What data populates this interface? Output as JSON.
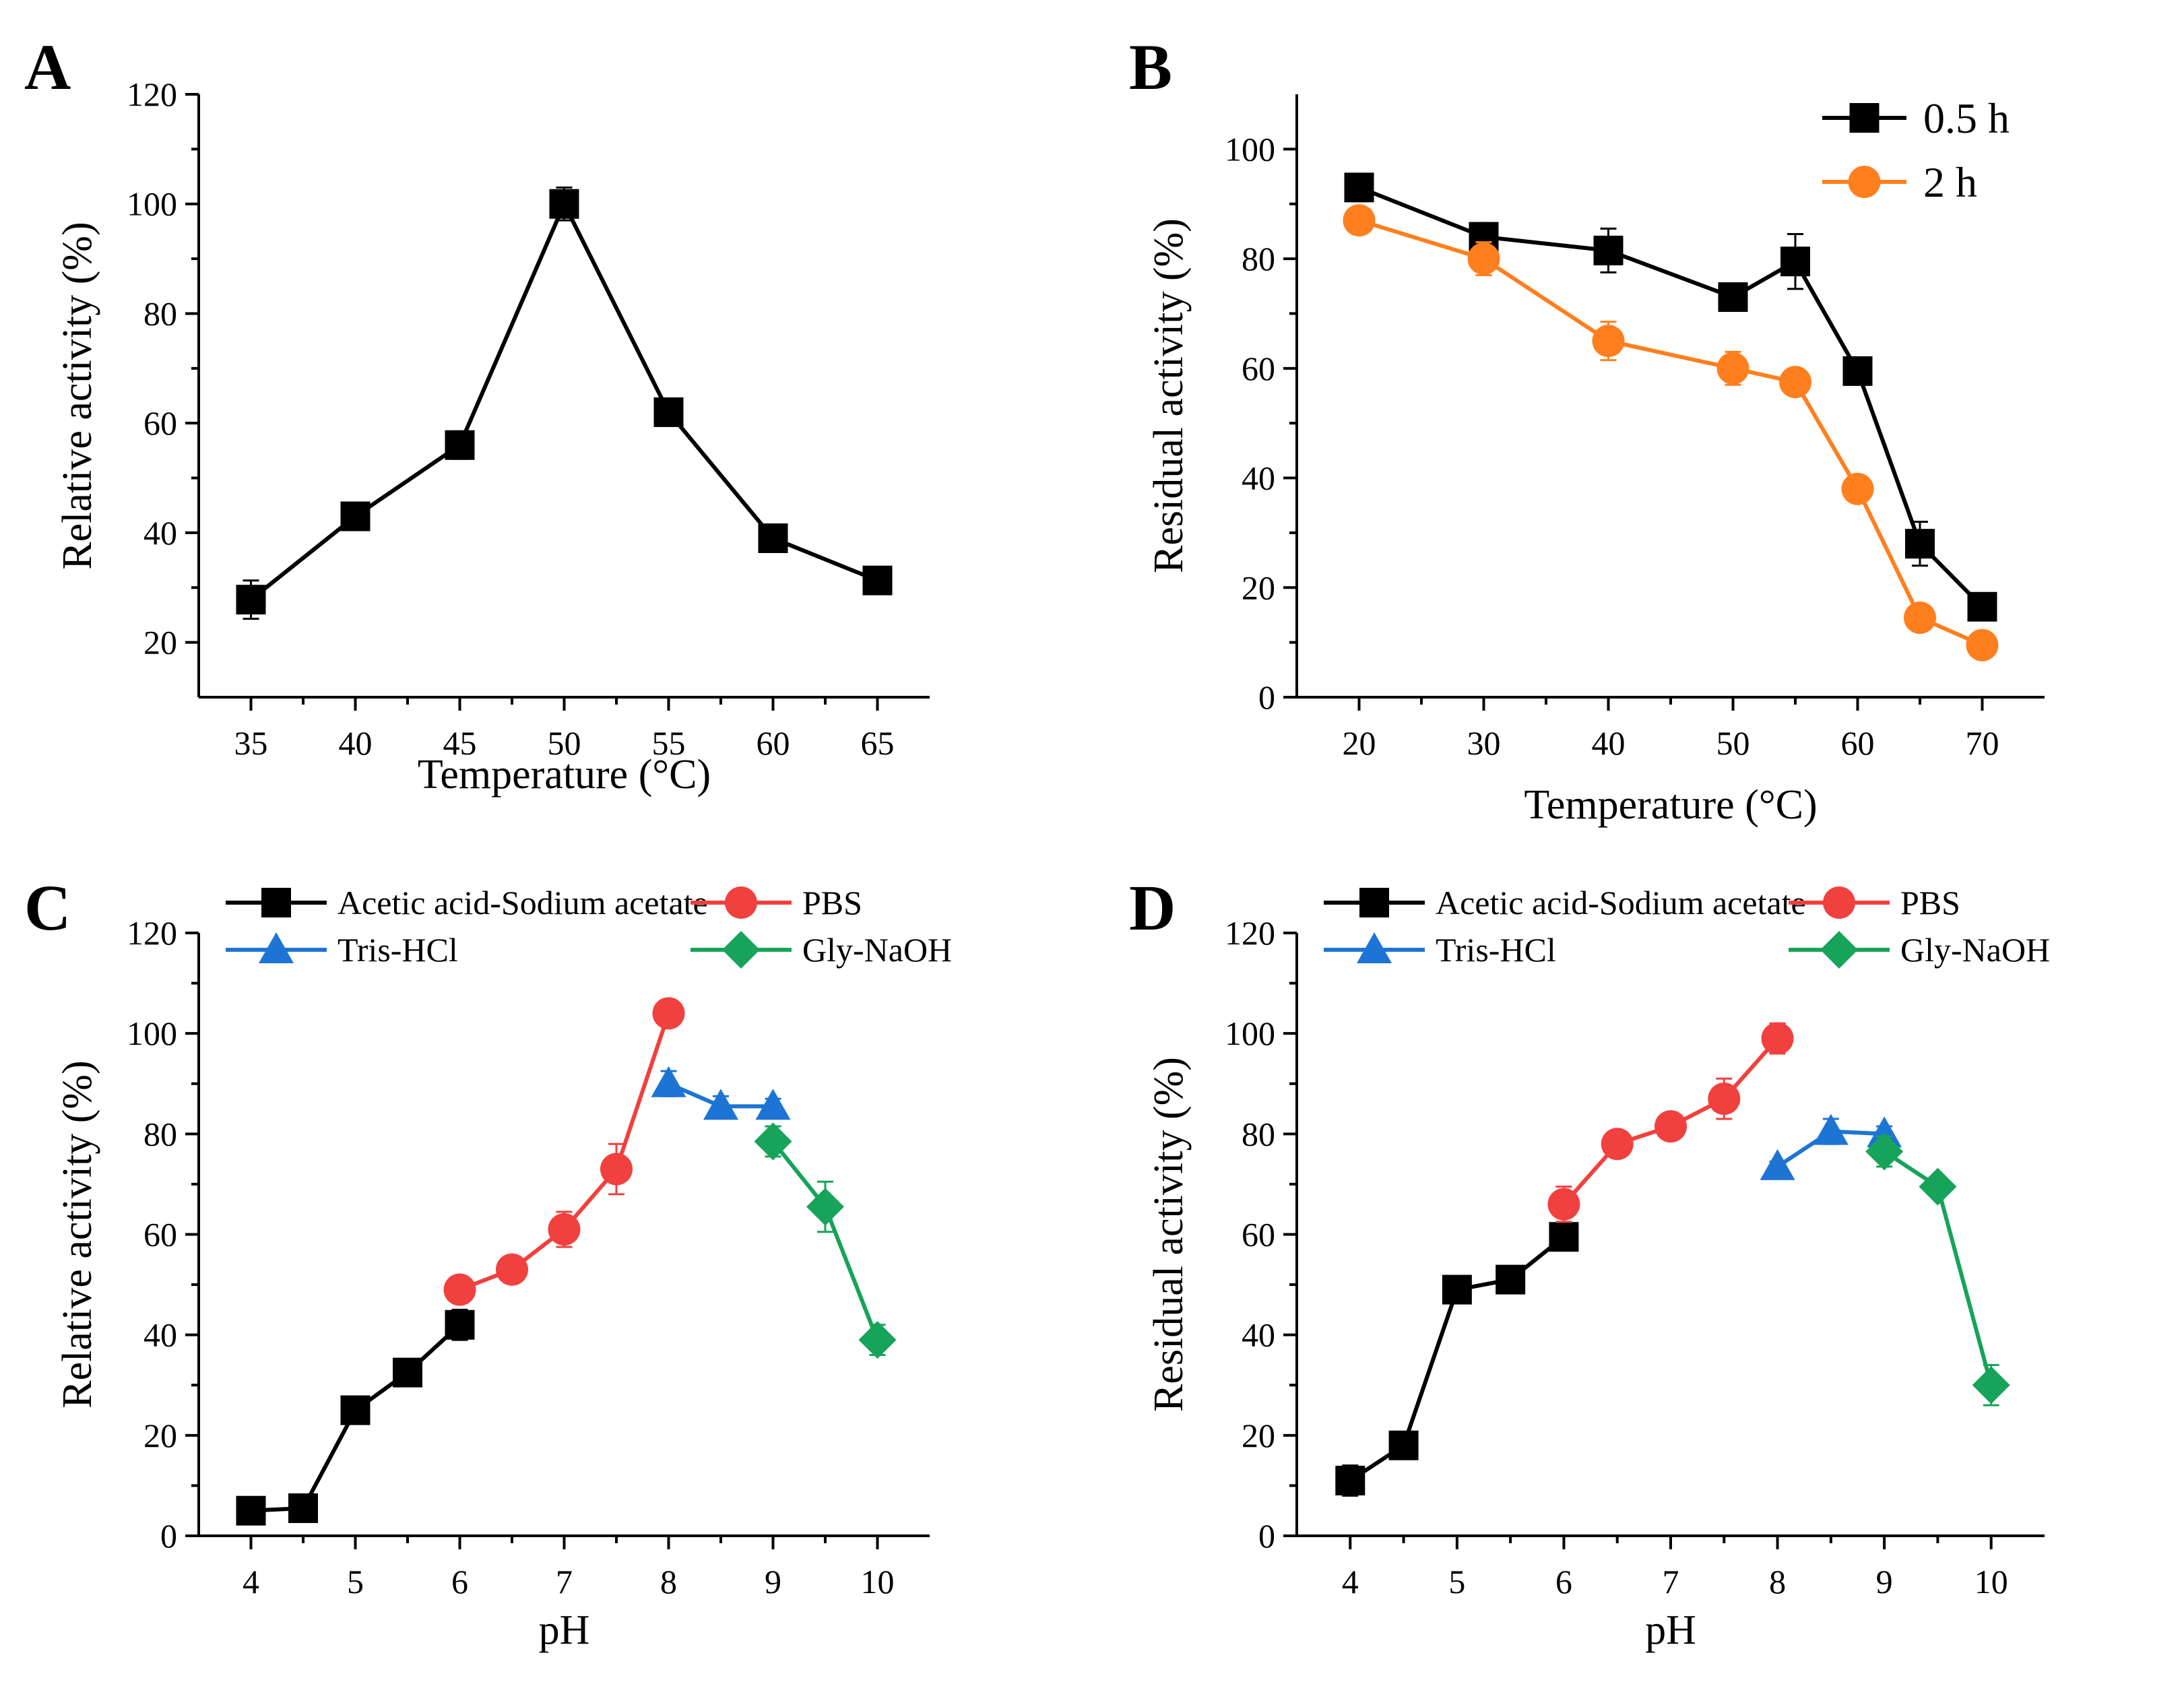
{
  "figure": {
    "panel_letters": [
      "A",
      "B",
      "C",
      "D"
    ]
  },
  "colors": {
    "black": "#000000",
    "orange": "#FF7F1E",
    "red": "#F0413F",
    "blue": "#1E74D4",
    "green": "#17A35A"
  },
  "chart_data": [
    {
      "id": "A",
      "type": "line",
      "xlabel": "Temperature (°C)",
      "ylabel": "Relative activity (%)",
      "xlim": [
        32.5,
        67.5
      ],
      "ylim": [
        10,
        120
      ],
      "xticks": [
        35,
        40,
        45,
        50,
        55,
        60,
        65
      ],
      "yticks": [
        20,
        40,
        60,
        80,
        100,
        120
      ],
      "series": [
        {
          "name": "",
          "color": "#000000",
          "marker": "square",
          "x": [
            35,
            40,
            45,
            50,
            55,
            60,
            65
          ],
          "y": [
            27.8,
            43,
            56,
            100,
            62,
            39,
            31.3
          ],
          "err": [
            3.5,
            1.2,
            2.5,
            3,
            2,
            1,
            1
          ]
        }
      ]
    },
    {
      "id": "B",
      "type": "line",
      "xlabel": "Temperature (°C)",
      "ylabel": "Residual activity (%)",
      "xlim": [
        15,
        75
      ],
      "ylim": [
        0,
        110
      ],
      "xticks": [
        20,
        30,
        40,
        50,
        60,
        70
      ],
      "yticks": [
        0,
        20,
        40,
        60,
        80,
        100
      ],
      "legend": "top-right",
      "series": [
        {
          "name": "0.5 h",
          "color": "#000000",
          "marker": "square",
          "x": [
            20,
            30,
            40,
            50,
            55,
            60,
            65,
            70
          ],
          "y": [
            93,
            84,
            81.5,
            73,
            79.5,
            59.5,
            28,
            16.5
          ],
          "err": [
            2.5,
            2.5,
            4,
            1.5,
            5,
            1.5,
            4,
            1
          ]
        },
        {
          "name": "2 h",
          "color": "#FF7F1E",
          "marker": "circle",
          "x": [
            20,
            30,
            40,
            50,
            55,
            60,
            65,
            70
          ],
          "y": [
            87,
            80,
            65,
            60,
            57.5,
            38,
            14.5,
            9.5
          ],
          "err": [
            1.5,
            3,
            3.5,
            3,
            1.5,
            1,
            1.5,
            1
          ]
        }
      ]
    },
    {
      "id": "C",
      "type": "line",
      "xlabel": "pH",
      "ylabel": "Relative activity (%)",
      "xlim": [
        3.5,
        10.5
      ],
      "ylim": [
        0,
        120
      ],
      "xticks": [
        4,
        5,
        6,
        7,
        8,
        9,
        10
      ],
      "yticks": [
        0,
        20,
        40,
        60,
        80,
        100,
        120
      ],
      "legend": "top",
      "series": [
        {
          "name": "Acetic acid-Sodium acetate",
          "color": "#000000",
          "marker": "square",
          "x": [
            4,
            4.5,
            5,
            5.5,
            6
          ],
          "y": [
            5,
            5.5,
            25,
            32.5,
            42
          ],
          "err": [
            1,
            1,
            1.5,
            2.5,
            3
          ]
        },
        {
          "name": "PBS",
          "color": "#F0413F",
          "marker": "circle",
          "x": [
            6,
            6.5,
            7,
            7.5,
            8
          ],
          "y": [
            49,
            53,
            61,
            73,
            104
          ],
          "err": [
            1.5,
            1.5,
            3.5,
            5,
            2
          ]
        },
        {
          "name": "Tris-HCl",
          "color": "#1E74D4",
          "marker": "triangle",
          "x": [
            8,
            8.5,
            9
          ],
          "y": [
            90,
            85.5,
            85.5
          ],
          "err": [
            2.5,
            2,
            1.5
          ]
        },
        {
          "name": "Gly-NaOH",
          "color": "#17A35A",
          "marker": "diamond",
          "x": [
            9,
            9.5,
            10
          ],
          "y": [
            78.5,
            65.5,
            39
          ],
          "err": [
            3,
            5,
            3
          ]
        }
      ]
    },
    {
      "id": "D",
      "type": "line",
      "xlabel": "pH",
      "ylabel": "Residual activity (%)",
      "xlim": [
        3.5,
        10.5
      ],
      "ylim": [
        0,
        120
      ],
      "xticks": [
        4,
        5,
        6,
        7,
        8,
        9,
        10
      ],
      "yticks": [
        0,
        20,
        40,
        60,
        80,
        100,
        120
      ],
      "legend": "top",
      "series": [
        {
          "name": "Acetic acid-Sodium acetate",
          "color": "#000000",
          "marker": "square",
          "x": [
            4,
            4.5,
            5,
            5.5,
            6
          ],
          "y": [
            11,
            18,
            49,
            51,
            59.5
          ],
          "err": [
            3,
            1,
            2.5,
            1,
            2
          ]
        },
        {
          "name": "PBS",
          "color": "#F0413F",
          "marker": "circle",
          "x": [
            6,
            6.5,
            7,
            7.5,
            8
          ],
          "y": [
            66,
            78,
            81.5,
            87,
            99
          ],
          "err": [
            3.5,
            2,
            1.5,
            4,
            3
          ]
        },
        {
          "name": "Tris-HCl",
          "color": "#1E74D4",
          "marker": "triangle",
          "x": [
            8,
            8.5,
            9
          ],
          "y": [
            73.5,
            80.5,
            80
          ],
          "err": [
            1,
            2.5,
            1.5
          ]
        },
        {
          "name": "Gly-NaOH",
          "color": "#17A35A",
          "marker": "diamond",
          "x": [
            9,
            9.5,
            10
          ],
          "y": [
            76.5,
            69.5,
            30
          ],
          "err": [
            3,
            1.5,
            4
          ]
        }
      ]
    }
  ]
}
